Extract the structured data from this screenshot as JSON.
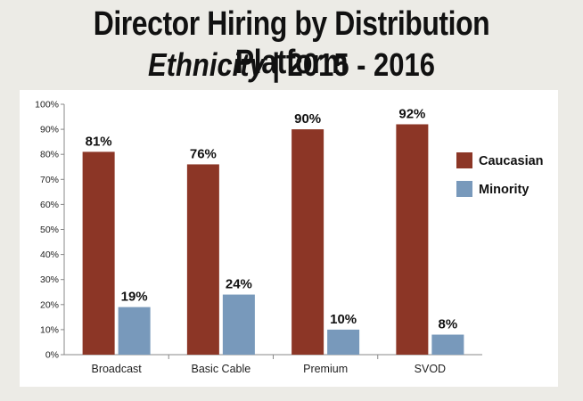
{
  "title": {
    "line1": "Director Hiring by Distribution Platform",
    "line2_emphasis": "Ethnicity",
    "line2_rest": " | 2015 - 2016"
  },
  "chart_data": {
    "type": "bar",
    "title": "Director Hiring by Distribution Platform — Ethnicity | 2015 - 2016",
    "categories": [
      "Broadcast",
      "Basic Cable",
      "Premium",
      "SVOD"
    ],
    "series": [
      {
        "name": "Caucasian",
        "color": "#8c3626",
        "values": [
          81,
          76,
          90,
          92
        ],
        "labels": [
          "81%",
          "76%",
          "90%",
          "92%"
        ]
      },
      {
        "name": "Minority",
        "color": "#7899bb",
        "values": [
          19,
          24,
          10,
          8
        ],
        "labels": [
          "19%",
          "24%",
          "10%",
          "8%"
        ]
      }
    ],
    "ylim": [
      0,
      100
    ],
    "yticks": [
      "0%",
      "10%",
      "20%",
      "30%",
      "40%",
      "50%",
      "60%",
      "70%",
      "80%",
      "90%",
      "100%"
    ],
    "xlabel": "",
    "ylabel": "",
    "legend_position": "right",
    "grid": false
  }
}
